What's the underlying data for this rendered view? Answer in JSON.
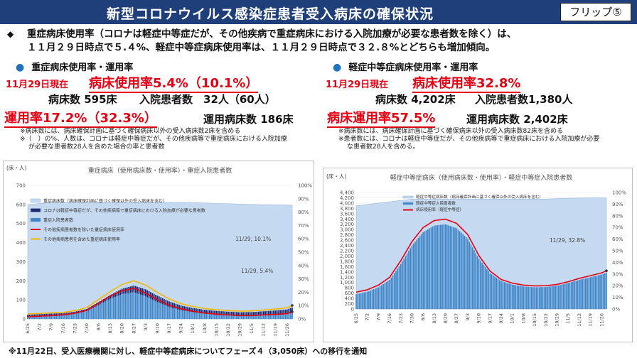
{
  "header": {
    "title": "新型コロナウイルス感染症患者受入病床の確保状況",
    "flip_label": "フリップ⑤"
  },
  "summary": {
    "line1": "重症病床使用率（コロナは軽症中等症だが、その他疾病で重症病床における入院加療が必要な患者数を除く）は、",
    "line2": "１１月２９日時点で５.４%、軽症中等症病床使用率は、１１月２９日時点で３２.８%とどちらも増加傾向。"
  },
  "left": {
    "section_title": "重症病床使用率・運用率",
    "date": "11月29日現在",
    "usage": "病床使用率5.4%（10.1%）",
    "beds": "病床数 595床",
    "patients": "入院患者数　32人（60人）",
    "operation": "運用率17.2%（32.3%）",
    "operating_beds": "運用病床数 186床",
    "note1": "※病床数には、病床確保計画に基づく確保病床以外の受入病床数2床を含める",
    "note2": "※（　）の%、人数は、コロナは軽症中等症だが、その他疾病等で重症病床における入院加療",
    "note3": "が必要な患者数28人を含めた場合の率と患者数"
  },
  "right": {
    "section_title": "軽症中等症病床使用率・運用率",
    "date": "11月29日現在",
    "usage": "病床使用率32.8%",
    "beds": "病床数 4,202床",
    "patients": "入院患者数1,380人",
    "operation": "病床運用率57.5%",
    "operating_beds": "運用病床数 2,402床",
    "note1": "※病床数には、病床確保計画に基づく確保病床以外の受入病床数82床を含める",
    "note2": "※患者数には、コロナは軽症中等症だが、その他疾病等で重症病床における入院加療が必要",
    "note3": "な患者数28人を含める。"
  },
  "footer": "※11月22日、受入医療機関に対し、軽症中等症病床についてフェーズ４（3,050床）への移行を通知",
  "chart_data": [
    {
      "type": "bar",
      "title": "重症病床（使用病床数・使用率）・重症入院患者数",
      "ylabel": "(床・人)",
      "ylim": [
        0,
        700
      ],
      "y_ticks": [
        0,
        100,
        200,
        300,
        400,
        500,
        600,
        700
      ],
      "y2lim": [
        0,
        100
      ],
      "y2_ticks": [
        "0%",
        "10%",
        "20%",
        "30%",
        "40%",
        "50%",
        "60%",
        "70%",
        "80%",
        "90%",
        "100%"
      ],
      "x_ticks": [
        "6/25",
        "7/2",
        "7/9",
        "7/16",
        "7/23",
        "7/30",
        "8/6",
        "8/13",
        "8/20",
        "8/27",
        "9/3",
        "9/10",
        "9/17",
        "9/24",
        "10/1",
        "10/8",
        "10/15",
        "10/22",
        "10/29",
        "11/5",
        "11/12",
        "11/19",
        "11/26"
      ],
      "legend": [
        "重症病床数（病床確保計画に基づく確保以外の受入病床を含む）",
        "コロナは軽症中等症だが、その他疾病等で重症病床における入院加療が必要な患者数",
        "重症入院患者数",
        "その他疾病患者数を除いた重症病床使用率",
        "その他疾病患者を含めた重症病床使用率"
      ],
      "colors": {
        "beds": "#c5d9f1",
        "other": "#1f2b6e",
        "severe": "#3f86c8",
        "rate_ex": "#e60012",
        "rate_in": "#f5b800"
      },
      "annotations": [
        "11/29, 10.1%",
        "11/29, 5.4%"
      ],
      "x": [
        0,
        7,
        14,
        21,
        28,
        35,
        42,
        49,
        56,
        63,
        70,
        77,
        84,
        91,
        98,
        105,
        112,
        119,
        126,
        133,
        140,
        147,
        154,
        157
      ],
      "series": [
        {
          "name": "重症病床数（病床確保計画に基づく確保以外の受入病床を含む）",
          "values": [
            600,
            605,
            610,
            610,
            610,
            612,
            612,
            612,
            612,
            612,
            612,
            612,
            612,
            612,
            610,
            608,
            606,
            604,
            602,
            600,
            598,
            597,
            596,
            595
          ]
        },
        {
          "name": "重症入院患者数",
          "values": [
            10,
            12,
            15,
            18,
            26,
            40,
            72,
            105,
            130,
            140,
            118,
            88,
            62,
            46,
            35,
            27,
            22,
            18,
            15,
            15,
            18,
            20,
            24,
            32
          ]
        },
        {
          "name": "コロナは軽症中等症だが、その他疾病等で重症病床における入院加療が必要な患者数",
          "values": [
            22,
            25,
            28,
            30,
            38,
            52,
            88,
            125,
            158,
            175,
            155,
            122,
            92,
            70,
            57,
            48,
            42,
            38,
            35,
            36,
            40,
            44,
            50,
            60
          ]
        },
        {
          "name": "その他疾病患者数を除いた重症病床使用率",
          "values": [
            1.7,
            2.0,
            2.5,
            3.0,
            4.3,
            6.5,
            11.8,
            17.2,
            21.2,
            22.9,
            19.3,
            14.4,
            10.1,
            7.5,
            5.7,
            4.4,
            3.6,
            3.0,
            2.5,
            2.5,
            3.0,
            3.4,
            4.0,
            5.4
          ]
        },
        {
          "name": "その他疾病患者を含めた重症病床使用率",
          "values": [
            3.7,
            4.1,
            4.6,
            4.9,
            6.2,
            8.5,
            14.4,
            20.4,
            25.8,
            28.6,
            25.3,
            19.9,
            15.0,
            11.4,
            9.3,
            7.9,
            6.9,
            6.3,
            5.8,
            6.0,
            6.7,
            7.4,
            8.4,
            10.1
          ]
        }
      ]
    },
    {
      "type": "bar",
      "title": "軽症中等症病床（使用病床数・使用率）・軽症中等症入院患者数",
      "ylabel": "(床・人)",
      "ylim": [
        0,
        4400
      ],
      "y_ticks": [
        0,
        200,
        400,
        600,
        800,
        1000,
        1200,
        1400,
        1600,
        1800,
        2000,
        2200,
        2400,
        2600,
        2800,
        3000,
        3200,
        3400,
        3600,
        3800,
        4000,
        4200,
        4400
      ],
      "y2lim": [
        0,
        100
      ],
      "y2_ticks": [
        "0%",
        "10%",
        "20%",
        "30%",
        "40%",
        "50%",
        "60%",
        "70%",
        "80%",
        "90%",
        "100%"
      ],
      "x_ticks": [
        "6/25",
        "7/2",
        "7/9",
        "7/16",
        "7/23",
        "7/30",
        "8/6",
        "8/13",
        "8/20",
        "8/27",
        "9/3",
        "9/10",
        "9/17",
        "9/24",
        "10/1",
        "10/8",
        "10/15",
        "10/22",
        "10/29",
        "11/5",
        "11/12",
        "11/19",
        "11/26"
      ],
      "legend": [
        "軽症中等症病床数（病床確保計画に基づく確保以外の受入病床を含む）",
        "軽症中等症入院患者数",
        "病床使用率（軽症中等症）"
      ],
      "colors": {
        "beds": "#c5d9f1",
        "patients": "#3f86c8",
        "rate": "#e60012"
      },
      "annotations": [
        "11/29, 32.8%"
      ],
      "x": [
        0,
        7,
        14,
        21,
        28,
        35,
        42,
        49,
        56,
        63,
        70,
        77,
        84,
        91,
        98,
        105,
        112,
        119,
        126,
        133,
        140,
        147,
        154,
        157
      ],
      "series": [
        {
          "name": "軽症中等症病床数（病床確保計画に基づく確保以外の受入病床を含む）",
          "values": [
            3900,
            3950,
            4000,
            4050,
            4100,
            4150,
            4150,
            4150,
            4150,
            4150,
            4150,
            4150,
            4150,
            4150,
            4150,
            4150,
            4150,
            4150,
            4170,
            4180,
            4190,
            4200,
            4202,
            4202
          ]
        },
        {
          "name": "軽症中等症入院患者数",
          "values": [
            560,
            650,
            820,
            1100,
            1700,
            2400,
            2900,
            3150,
            3200,
            3050,
            2650,
            1900,
            1350,
            1050,
            920,
            850,
            820,
            830,
            880,
            980,
            1100,
            1200,
            1300,
            1380
          ]
        },
        {
          "name": "病床使用率（軽症中等症）",
          "values": [
            14.4,
            16.5,
            20.5,
            27.2,
            41.5,
            57.8,
            69.9,
            75.9,
            77.1,
            73.5,
            63.9,
            45.8,
            32.5,
            25.3,
            22.2,
            20.5,
            19.8,
            20.0,
            21.1,
            23.4,
            26.3,
            28.6,
            31.0,
            32.8
          ]
        }
      ]
    }
  ]
}
